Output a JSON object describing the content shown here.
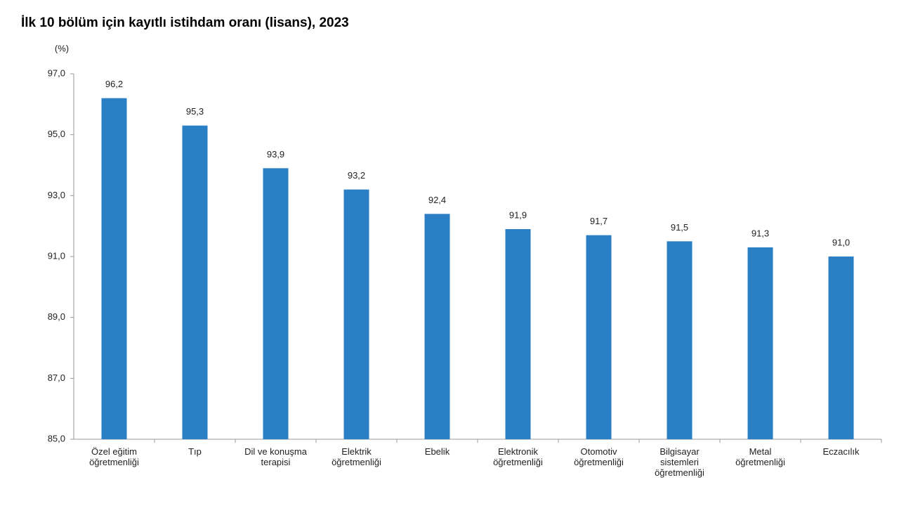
{
  "chart_data": {
    "type": "bar",
    "title": "İlk 10 bölüm için kayıtlı istihdam oranı (lisans), 2023",
    "y_label": "(%)",
    "categories": [
      "Özel eğitim\nöğretmenliği",
      "Tıp",
      "Dil ve konuşma\nterapisi",
      "Elektrik\nöğretmenliği",
      "Ebelik",
      "Elektronik\nöğretmenliği",
      "Otomotiv\nöğretmenliği",
      "Bilgisayar\nsistemleri\nöğretmenliği",
      "Metal\nöğretmenliği",
      "Eczacılık"
    ],
    "values": [
      96.2,
      95.3,
      93.9,
      93.2,
      92.4,
      91.9,
      91.7,
      91.5,
      91.3,
      91.0
    ],
    "value_labels": [
      "96,2",
      "95,3",
      "93,9",
      "93,2",
      "92,4",
      "91,9",
      "91,7",
      "91,5",
      "91,3",
      "91,0"
    ],
    "color": "#2b7fc4",
    "ylim": [
      85,
      97
    ],
    "yticks": [
      {
        "value": 85,
        "label": "85,0"
      },
      {
        "value": 87,
        "label": "87,0"
      },
      {
        "value": 89,
        "label": "89,0"
      },
      {
        "value": 91,
        "label": "91,0"
      },
      {
        "value": 93,
        "label": "93,0"
      },
      {
        "value": 95,
        "label": "95,0"
      },
      {
        "value": 97,
        "label": "97,0"
      }
    ],
    "grid": false
  }
}
